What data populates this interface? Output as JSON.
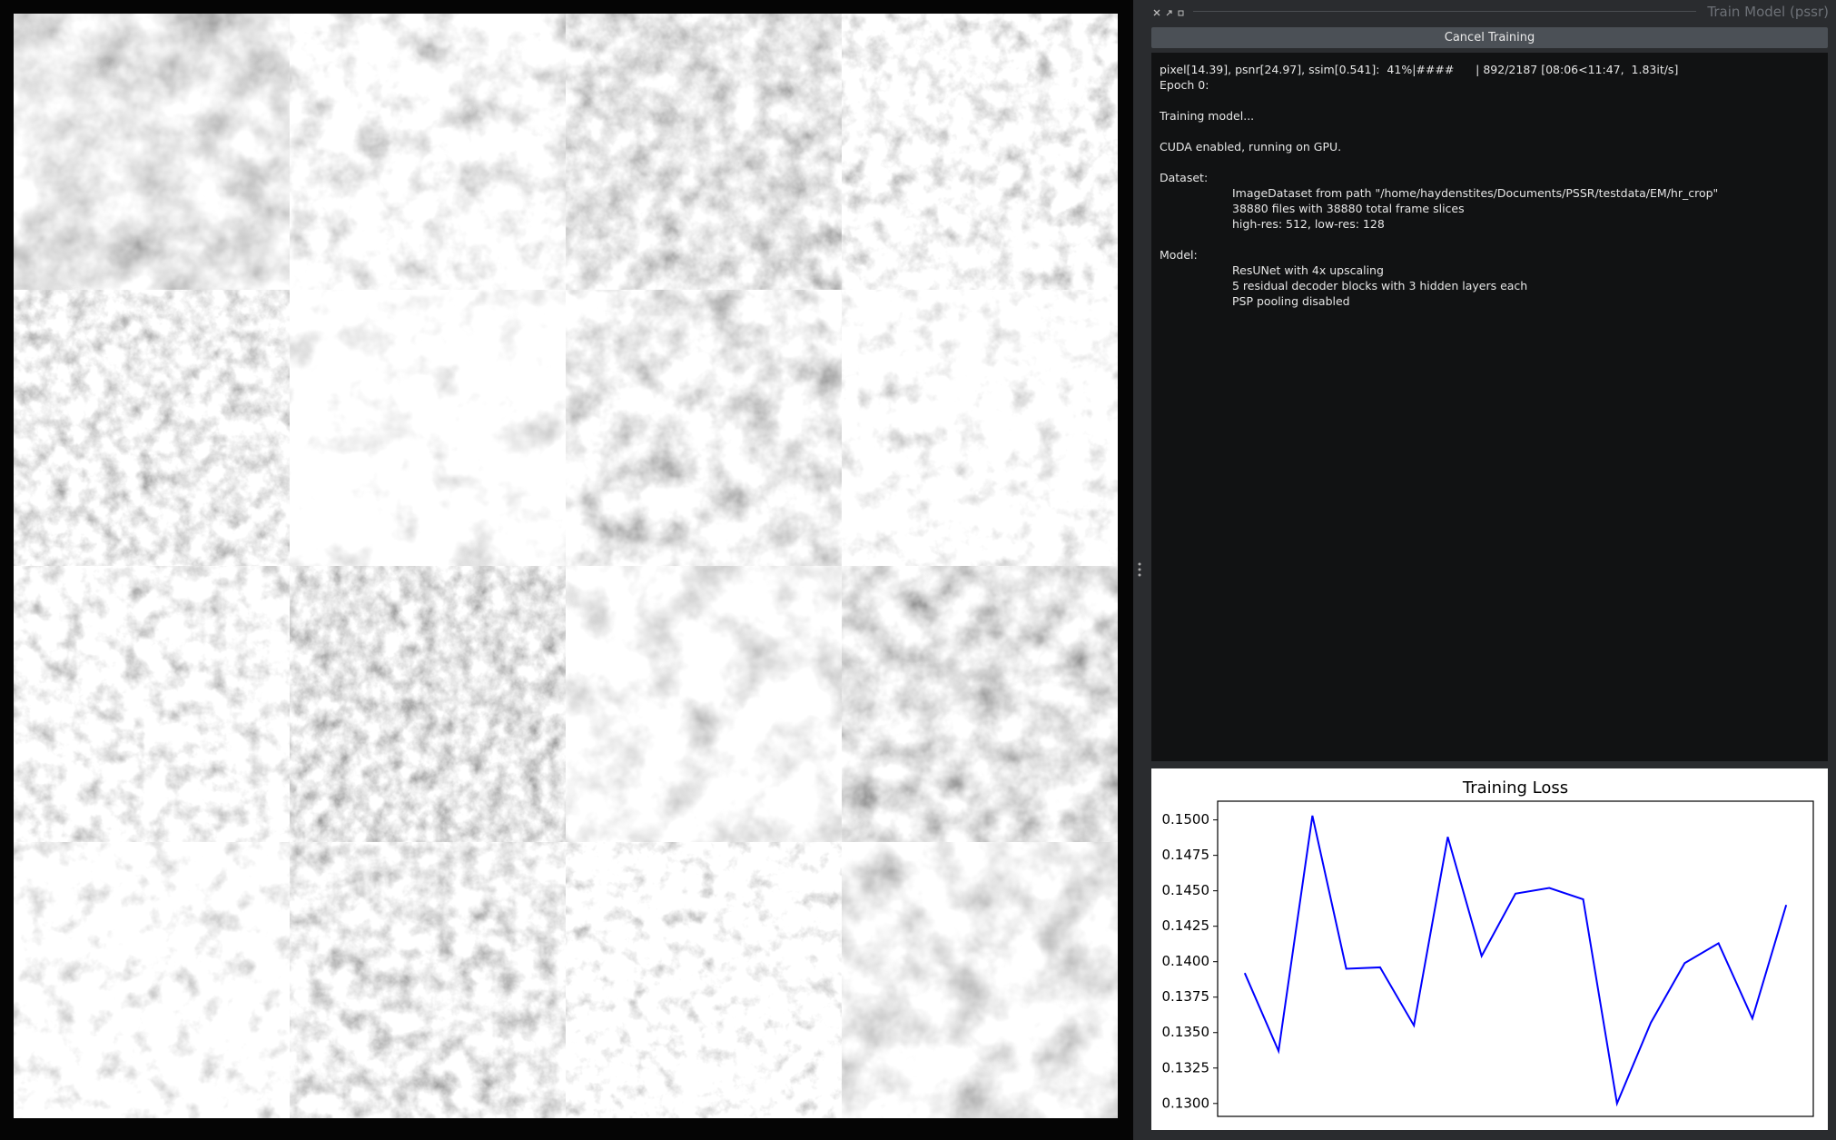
{
  "window": {
    "title": "Train Model (pssr)",
    "button": "Cancel Training"
  },
  "log": [
    {
      "lines": [
        "pixel[14.39], psnr[24.97], ssim[0.541]:  41%|####      | 892/2187 [08:06<11:47,  1.83it/s]",
        "Epoch 0:"
      ]
    },
    {
      "lines": [
        "Training model..."
      ]
    },
    {
      "lines": [
        "CUDA enabled, running on GPU."
      ]
    },
    {
      "lines": [
        "Dataset:"
      ],
      "details": [
        "ImageDataset from path \"/home/haydenstites/Documents/PSSR/testdata/EM/hr_crop\"",
        "38880 files with 38880 total frame slices",
        "high-res: 512, low-res: 128"
      ]
    },
    {
      "lines": [
        "Model:"
      ],
      "details": [
        "ResUNet with 4x upscaling",
        "5 residual decoder blocks with 3 hidden layers each",
        "PSP pooling disabled"
      ]
    }
  ],
  "chart_data": {
    "type": "line",
    "title": "Training Loss",
    "color": "#0000ff",
    "x": [
      0,
      1,
      2,
      3,
      4,
      5,
      6,
      7,
      8,
      9,
      10,
      11,
      12,
      13,
      14,
      15,
      16
    ],
    "values": [
      0.1392,
      0.1337,
      0.1503,
      0.1395,
      0.1396,
      0.1355,
      0.1488,
      0.1404,
      0.1448,
      0.1452,
      0.1444,
      0.13,
      0.1357,
      0.1399,
      0.1413,
      0.136,
      0.144
    ],
    "xlim": [
      -0.8,
      16.8
    ],
    "ylim": [
      0.12909,
      0.15132
    ],
    "yticks": [
      {
        "value": 0.13,
        "label": "0.1300"
      },
      {
        "value": 0.1325,
        "label": "0.1325"
      },
      {
        "value": 0.135,
        "label": "0.1350"
      },
      {
        "value": 0.1375,
        "label": "0.1375"
      },
      {
        "value": 0.14,
        "label": "0.1400"
      },
      {
        "value": 0.1425,
        "label": "0.1425"
      },
      {
        "value": 0.145,
        "label": "0.1450"
      },
      {
        "value": 0.1475,
        "label": "0.1475"
      },
      {
        "value": 0.15,
        "label": "0.1500"
      }
    ]
  }
}
